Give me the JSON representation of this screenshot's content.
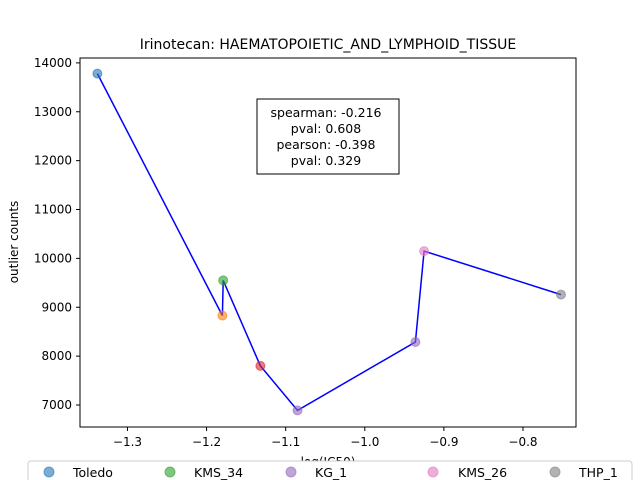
{
  "chart_data": {
    "type": "scatter",
    "title": "Irinotecan: HAEMATOPOIETIC_AND_LYMPHOID_TISSUE",
    "xlabel": "log(IC50)",
    "ylabel": "outlier counts",
    "xlim": [
      -1.36,
      -0.733
    ],
    "ylim": [
      6550,
      14100
    ],
    "x_ticks": [
      -1.3,
      -1.2,
      -1.1,
      -1.0,
      -0.9,
      -0.8
    ],
    "x_tick_labels": [
      "−1.3",
      "−1.2",
      "−1.1",
      "−1.0",
      "−0.9",
      "−0.8"
    ],
    "y_ticks": [
      7000,
      8000,
      9000,
      10000,
      11000,
      12000,
      13000,
      14000
    ],
    "y_tick_labels": [
      "7000",
      "8000",
      "9000",
      "10000",
      "11000",
      "12000",
      "13000",
      "14000"
    ],
    "line_color": "#0000ff",
    "line_order_by": "x",
    "points": [
      {
        "x": -1.338,
        "y": 13780,
        "color": "#1f77b4"
      },
      {
        "x": -1.18,
        "y": 8830,
        "color": "#ff7f0e"
      },
      {
        "x": -1.179,
        "y": 9550,
        "color": "#2ca02c"
      },
      {
        "x": -1.132,
        "y": 7800,
        "color": "#d62728"
      },
      {
        "x": -1.085,
        "y": 6890,
        "color": "#9467bd"
      },
      {
        "x": -0.936,
        "y": 8290,
        "color": "#9467bd"
      },
      {
        "x": -0.925,
        "y": 10150,
        "color": "#e377c2"
      },
      {
        "x": -0.752,
        "y": 9260,
        "color": "#7f7f7f"
      }
    ],
    "annotation": [
      "spearman: -0.216",
      "pval: 0.608",
      "pearson: -0.398",
      "pval: 0.329"
    ],
    "legend": [
      {
        "label": "Toledo",
        "color": "#1f77b4"
      },
      {
        "label": "KMS_34",
        "color": "#2ca02c"
      },
      {
        "label": "KG_1",
        "color": "#9467bd"
      },
      {
        "label": "KMS_26",
        "color": "#e377c2"
      },
      {
        "label": "THP_1",
        "color": "#7f7f7f"
      }
    ],
    "legend_position": "bottom",
    "grid": false
  }
}
